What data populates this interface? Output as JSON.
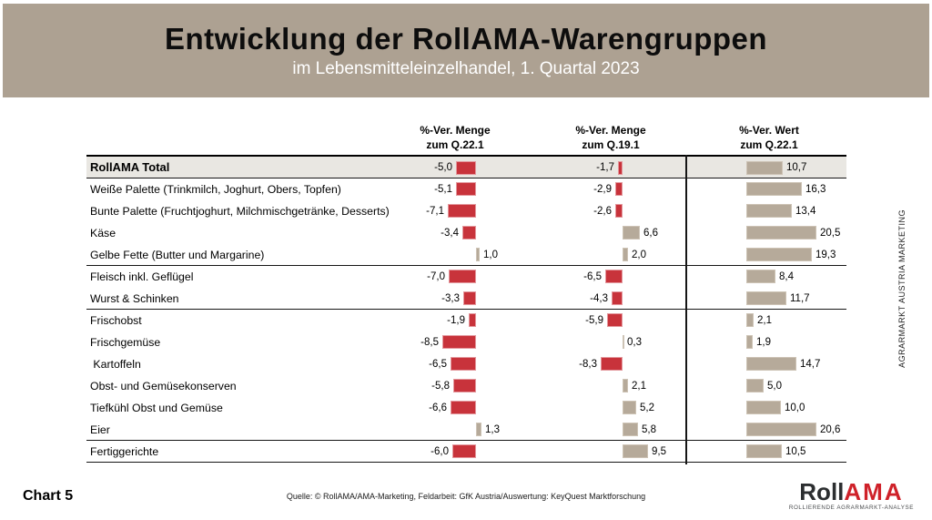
{
  "header": {
    "title": "Entwicklung der RollAMA-Warengruppen",
    "subtitle": "im Lebensmitteleinzelhandel, 1. Quartal 2023"
  },
  "columns": [
    {
      "line1": "%-Ver. Menge",
      "line2": "zum Q.22.1"
    },
    {
      "line1": "%-Ver. Menge",
      "line2": "zum Q.19.1"
    },
    {
      "line1": "%-Ver. Wert",
      "line2": "zum Q.22.1"
    }
  ],
  "chart_data": {
    "type": "bar",
    "orientation": "horizontal",
    "title": "Entwicklung der RollAMA-Warengruppen",
    "subtitle": "im Lebensmitteleinzelhandel, 1. Quartal 2023",
    "categories": [
      "RollAMA Total",
      "Weiße Palette (Trinkmilch, Joghurt, Obers, Topfen)",
      "Bunte Palette (Fruchtjoghurt, Milchmischgetränke, Desserts)",
      "Käse",
      "Gelbe Fette (Butter und Margarine)",
      "Fleisch inkl. Geflügel",
      "Wurst & Schinken",
      "Frischobst",
      "Frischgemüse",
      " Kartoffeln",
      "Obst- und Gemüsekonserven",
      "Tiefkühl Obst und Gemüse",
      "Eier",
      "Fertiggerichte"
    ],
    "series": [
      {
        "name": "%-Ver. Menge zum Q.22.1",
        "values": [
          -5.0,
          -5.1,
          -7.1,
          -3.4,
          1.0,
          -7.0,
          -3.3,
          -1.9,
          -8.5,
          -6.5,
          -5.8,
          -6.6,
          1.3,
          -6.0
        ]
      },
      {
        "name": "%-Ver. Menge zum Q.19.1",
        "values": [
          -1.7,
          -2.9,
          -2.6,
          6.6,
          2.0,
          -6.5,
          -4.3,
          -5.9,
          0.3,
          -8.3,
          2.1,
          5.2,
          5.8,
          9.5
        ]
      },
      {
        "name": "%-Ver. Wert zum Q.22.1",
        "values": [
          10.7,
          16.3,
          13.4,
          20.5,
          19.3,
          8.4,
          11.7,
          2.1,
          1.9,
          14.7,
          5.0,
          10.0,
          20.6,
          10.5
        ]
      }
    ],
    "value_format": "comma-decimal-1",
    "negative_color": "#c8333b",
    "positive_color": "#b6aa9a",
    "total_row_index": 0,
    "group_separators_after_rows": [
      0,
      4,
      6,
      12,
      13
    ],
    "legend_position": "none",
    "grid": false
  },
  "footer": {
    "chart_label": "Chart 5",
    "source": "Quelle: © RollAMA/AMA-Marketing, Feldarbeit: GfK Austria/Auswertung: KeyQuest Marktforschung"
  },
  "sidebar": {
    "vertical_text": "AGRARMARKT AUSTRIA MARKETING"
  },
  "logo": {
    "roll": "Roll",
    "ama": "AMA",
    "tagline": "ROLLIERENDE AGRARMARKT-ANALYSE"
  }
}
